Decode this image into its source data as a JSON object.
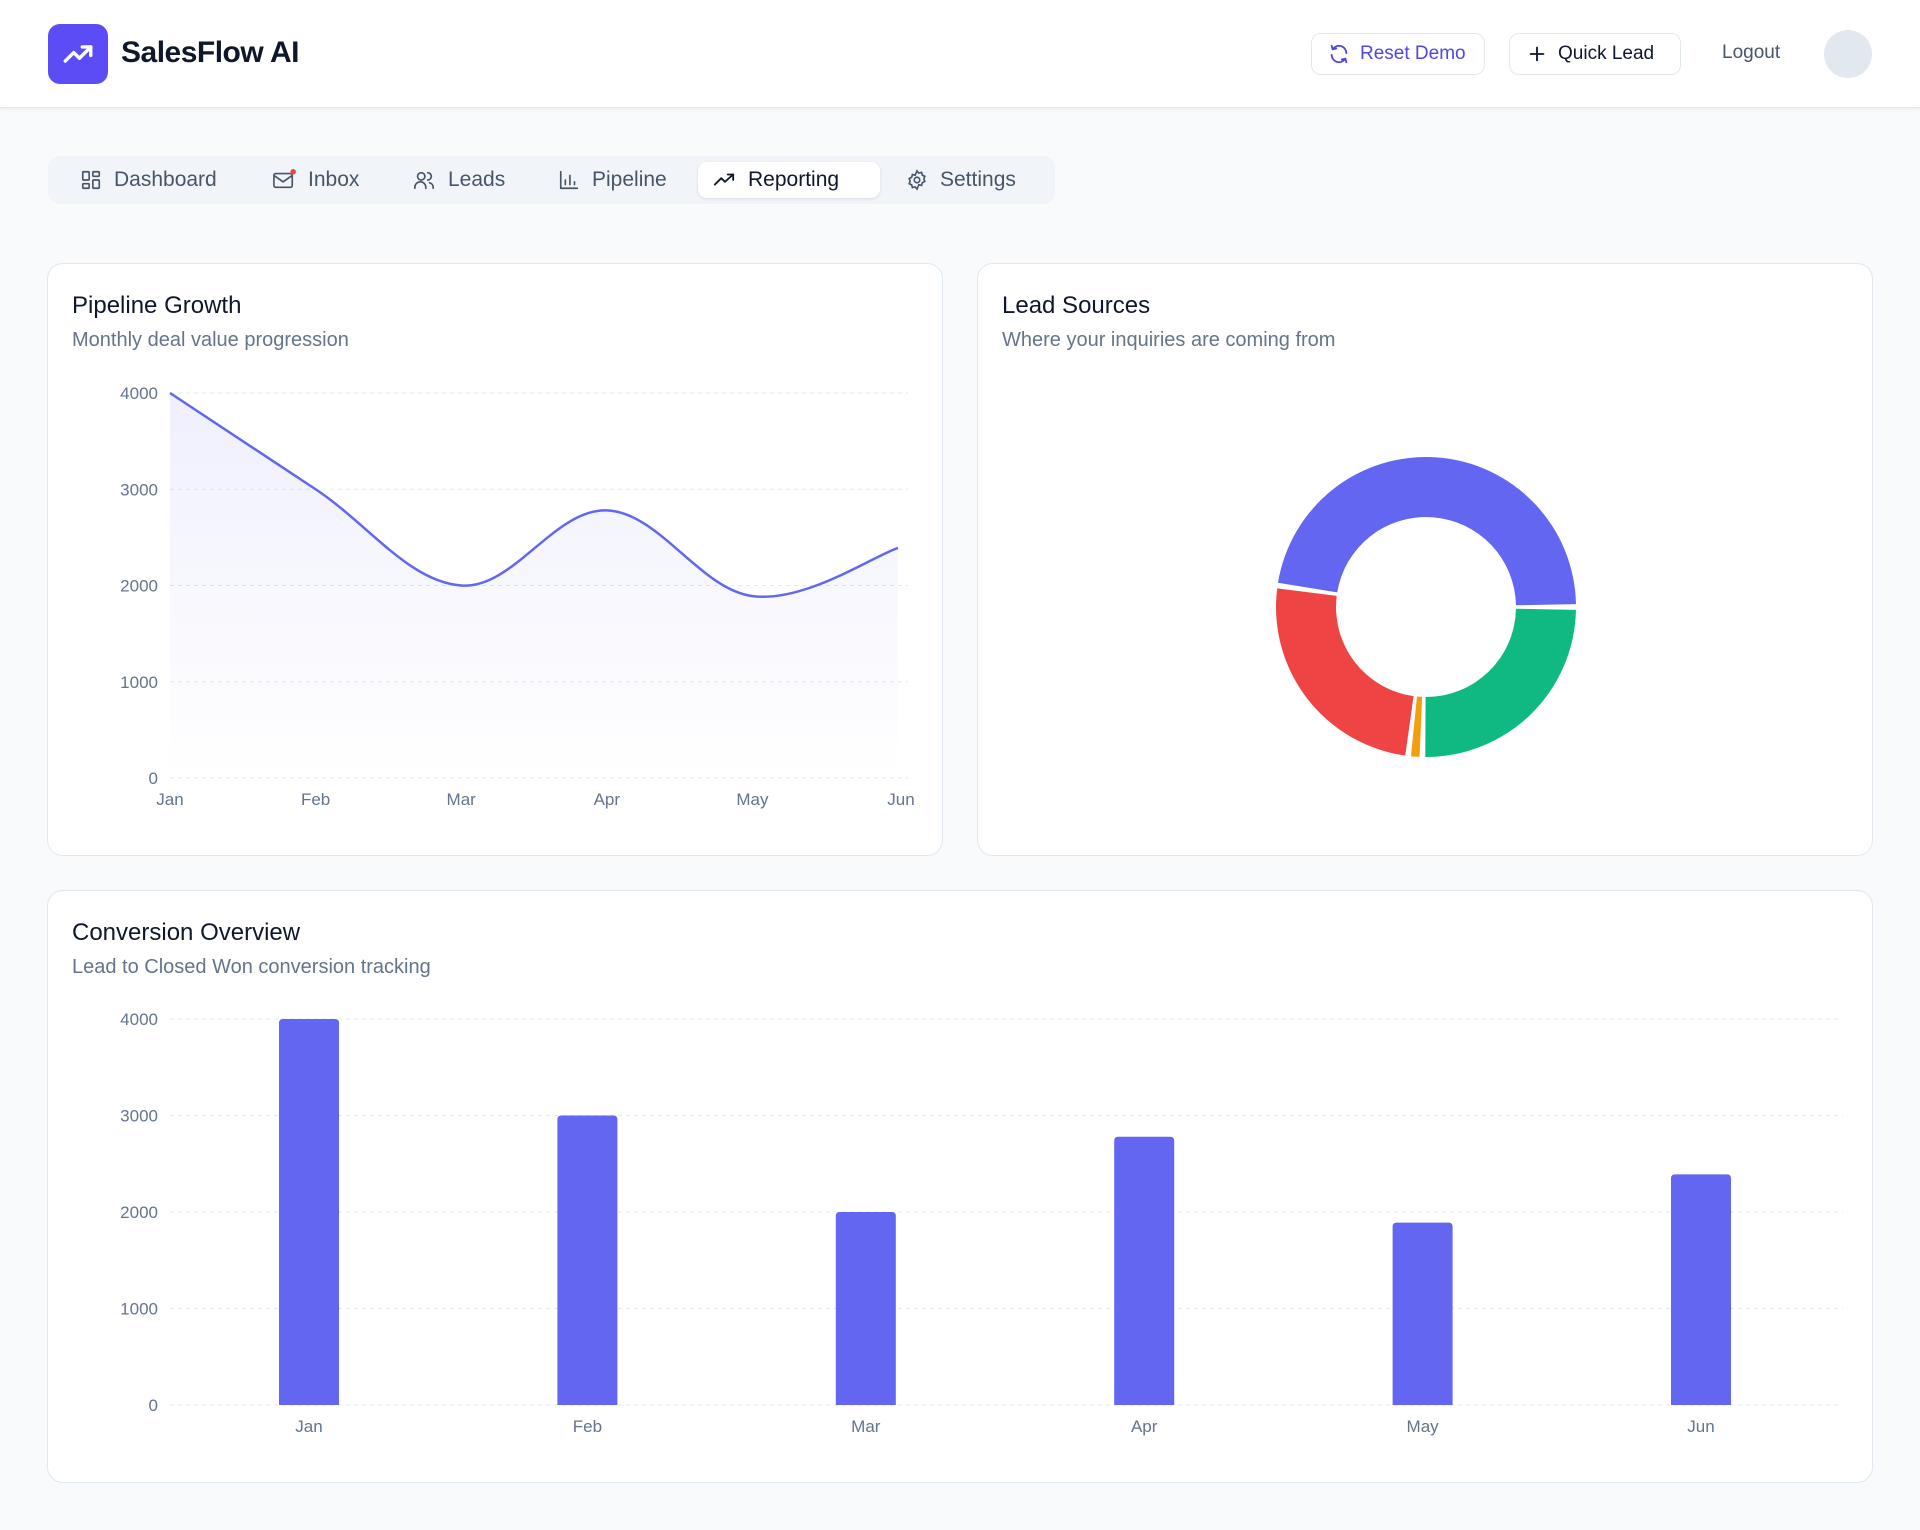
{
  "app": {
    "brand": "SalesFlow AI",
    "accent": "#5b4cf5"
  },
  "header": {
    "reset_label": "Reset Demo",
    "quick_label": "Quick Lead",
    "logout_label": "Logout"
  },
  "nav": {
    "tabs": [
      {
        "label": "Dashboard",
        "icon": "dashboard-grid-icon"
      },
      {
        "label": "Inbox",
        "icon": "mail-icon",
        "notification_dot": true
      },
      {
        "label": "Leads",
        "icon": "users-icon"
      },
      {
        "label": "Pipeline",
        "icon": "bar-chart-icon"
      },
      {
        "label": "Reporting",
        "icon": "trending-up-icon",
        "active": true
      },
      {
        "label": "Settings",
        "icon": "gear-icon"
      }
    ]
  },
  "pipeline_card": {
    "title": "Pipeline Growth",
    "subtitle": "Monthly deal value progression"
  },
  "lead_card": {
    "title": "Lead Sources",
    "subtitle": "Where your inquiries are coming from"
  },
  "conversion_card": {
    "title": "Conversion Overview",
    "subtitle": "Lead to Closed Won conversion tracking"
  },
  "chart_data": [
    {
      "type": "area",
      "title": "Pipeline Growth",
      "x": [
        "Jan",
        "Feb",
        "Mar",
        "Apr",
        "May",
        "Jun"
      ],
      "values": [
        4000,
        3000,
        2000,
        2780,
        1890,
        2390
      ],
      "yticks": [
        0,
        1000,
        2000,
        3000,
        4000
      ],
      "ylim": [
        0,
        4000
      ],
      "grid": "horizontal dashed",
      "color": "#6366f1"
    },
    {
      "type": "pie",
      "title": "Lead Sources",
      "donut": true,
      "values": [
        47,
        25,
        1.5,
        25
      ],
      "colors": [
        "#6366f1",
        "#ef4444",
        "#f59e0b",
        "#10b981"
      ]
    },
    {
      "type": "bar",
      "title": "Conversion Overview",
      "categories": [
        "Jan",
        "Feb",
        "Mar",
        "Apr",
        "May",
        "Jun"
      ],
      "values": [
        4000,
        3000,
        2000,
        2780,
        1890,
        2390
      ],
      "yticks": [
        0,
        1000,
        2000,
        3000,
        4000
      ],
      "ylim": [
        0,
        4000
      ],
      "grid": "horizontal dashed",
      "color": "#6366f1"
    }
  ]
}
